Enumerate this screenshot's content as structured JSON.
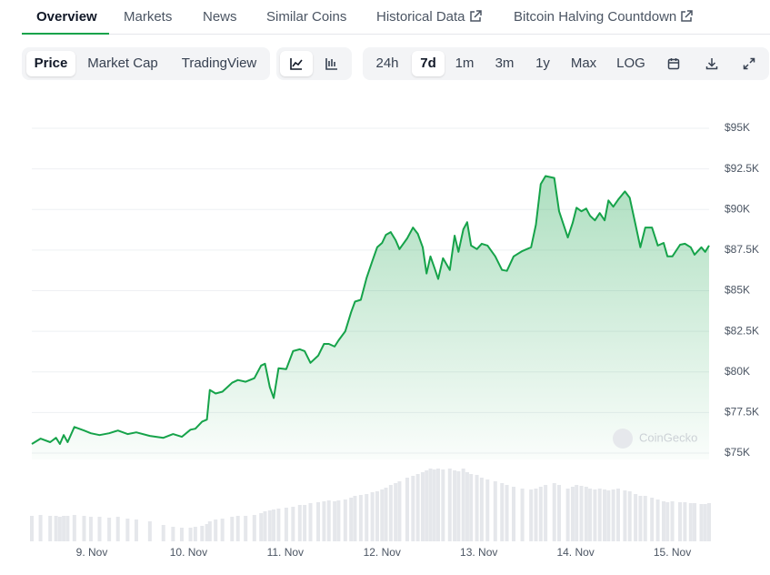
{
  "tabs": [
    "Overview",
    "Markets",
    "News",
    "Similar Coins",
    "Historical Data",
    "Bitcoin Halving Countdown"
  ],
  "toolbar": {
    "metrics": [
      "Price",
      "Market Cap",
      "TradingView"
    ],
    "ranges": [
      "24h",
      "7d",
      "1m",
      "3m",
      "1y",
      "Max",
      "LOG"
    ]
  },
  "chart_data": {
    "type": "area",
    "color": "#16a34a",
    "volume_color": "#e5e7eb",
    "watermark": "CoinGecko",
    "grid": true,
    "xlim": [
      8.38,
      15.38
    ],
    "ylim": [
      75000,
      95000
    ],
    "xticks": [
      {
        "value": 9,
        "label": "9. Nov"
      },
      {
        "value": 10,
        "label": "10. Nov"
      },
      {
        "value": 11,
        "label": "11. Nov"
      },
      {
        "value": 12,
        "label": "12. Nov"
      },
      {
        "value": 13,
        "label": "13. Nov"
      },
      {
        "value": 14,
        "label": "14. Nov"
      },
      {
        "value": 15,
        "label": "15. Nov"
      }
    ],
    "yticks": [
      {
        "value": 75000,
        "label": "$75K"
      },
      {
        "value": 77500,
        "label": "$77.5K"
      },
      {
        "value": 80000,
        "label": "$80K"
      },
      {
        "value": 82500,
        "label": "$82.5K"
      },
      {
        "value": 85000,
        "label": "$85K"
      },
      {
        "value": 87500,
        "label": "$87.5K"
      },
      {
        "value": 90000,
        "label": "$90K"
      },
      {
        "value": 92500,
        "label": "$92.5K"
      },
      {
        "value": 95000,
        "label": "$95K"
      }
    ],
    "x": [
      8.38,
      8.47,
      8.57,
      8.63,
      8.67,
      8.71,
      8.75,
      8.82,
      8.92,
      8.99,
      9.08,
      9.18,
      9.27,
      9.37,
      9.46,
      9.6,
      9.74,
      9.84,
      9.93,
      10.02,
      10.07,
      10.14,
      10.19,
      10.22,
      10.28,
      10.35,
      10.45,
      10.51,
      10.59,
      10.68,
      10.75,
      10.79,
      10.84,
      10.88,
      10.93,
      11.01,
      11.08,
      11.15,
      11.2,
      11.26,
      11.34,
      11.4,
      11.45,
      11.51,
      11.55,
      11.62,
      11.68,
      11.72,
      11.78,
      11.84,
      11.9,
      11.95,
      12.0,
      12.04,
      12.09,
      12.14,
      12.18,
      12.26,
      12.32,
      12.37,
      12.42,
      12.46,
      12.5,
      12.54,
      12.58,
      12.63,
      12.7,
      12.75,
      12.79,
      12.84,
      12.88,
      12.92,
      12.98,
      13.03,
      13.09,
      13.17,
      13.24,
      13.29,
      13.36,
      13.45,
      13.54,
      13.59,
      13.64,
      13.69,
      13.78,
      13.83,
      13.92,
      13.97,
      14.01,
      14.06,
      14.11,
      14.15,
      14.2,
      14.25,
      14.3,
      14.34,
      14.39,
      14.44,
      14.51,
      14.56,
      14.62,
      14.67,
      14.72,
      14.79,
      14.85,
      14.91,
      14.95,
      15.0,
      15.08,
      15.13,
      15.19,
      15.23,
      15.3,
      15.34,
      15.38
    ],
    "values": [
      75560,
      75890,
      75670,
      75940,
      75560,
      76110,
      75670,
      76610,
      76390,
      76220,
      76110,
      76220,
      76390,
      76170,
      76280,
      76060,
      75940,
      76170,
      76000,
      76440,
      76500,
      76940,
      77060,
      78890,
      78670,
      78780,
      79330,
      79500,
      79390,
      79610,
      80390,
      80500,
      79060,
      78390,
      80220,
      80170,
      81280,
      81390,
      81280,
      80560,
      81000,
      81720,
      81720,
      81560,
      81940,
      82500,
      83670,
      84330,
      84440,
      85780,
      86830,
      87670,
      87940,
      88440,
      88610,
      88110,
      87560,
      88220,
      88890,
      88500,
      87670,
      86060,
      87110,
      86440,
      85720,
      87000,
      86280,
      88390,
      87390,
      88780,
      89220,
      87780,
      87560,
      87890,
      87780,
      87110,
      86280,
      86220,
      87110,
      87440,
      87670,
      89060,
      91560,
      92060,
      91940,
      89890,
      88280,
      89170,
      90110,
      89890,
      90060,
      89610,
      89330,
      89780,
      89330,
      90560,
      90170,
      90610,
      91110,
      90720,
      89060,
      87670,
      88890,
      88890,
      87780,
      87940,
      87110,
      87110,
      87830,
      87890,
      87670,
      87220,
      87670,
      87390,
      87780
    ],
    "volume_values": [
      28,
      29,
      28,
      28,
      27,
      28,
      28,
      29,
      28,
      27,
      27,
      26,
      27,
      25,
      24,
      22,
      18,
      16,
      15,
      15,
      16,
      17,
      19,
      22,
      24,
      25,
      27,
      28,
      28,
      29,
      31,
      33,
      34,
      35,
      36,
      37,
      38,
      40,
      40,
      42,
      43,
      44,
      45,
      44,
      45,
      46,
      48,
      50,
      51,
      52,
      54,
      55,
      57,
      59,
      62,
      64,
      66,
      70,
      72,
      74,
      76,
      78,
      80,
      79,
      80,
      79,
      80,
      78,
      77,
      80,
      76,
      74,
      73,
      70,
      68,
      66,
      64,
      62,
      60,
      58,
      57,
      58,
      60,
      62,
      64,
      62,
      58,
      60,
      62,
      61,
      60,
      58,
      57,
      58,
      57,
      56,
      57,
      58,
      56,
      55,
      52,
      50,
      50,
      48,
      46,
      44,
      43,
      44,
      43,
      43,
      42,
      42,
      41,
      41,
      42
    ]
  }
}
